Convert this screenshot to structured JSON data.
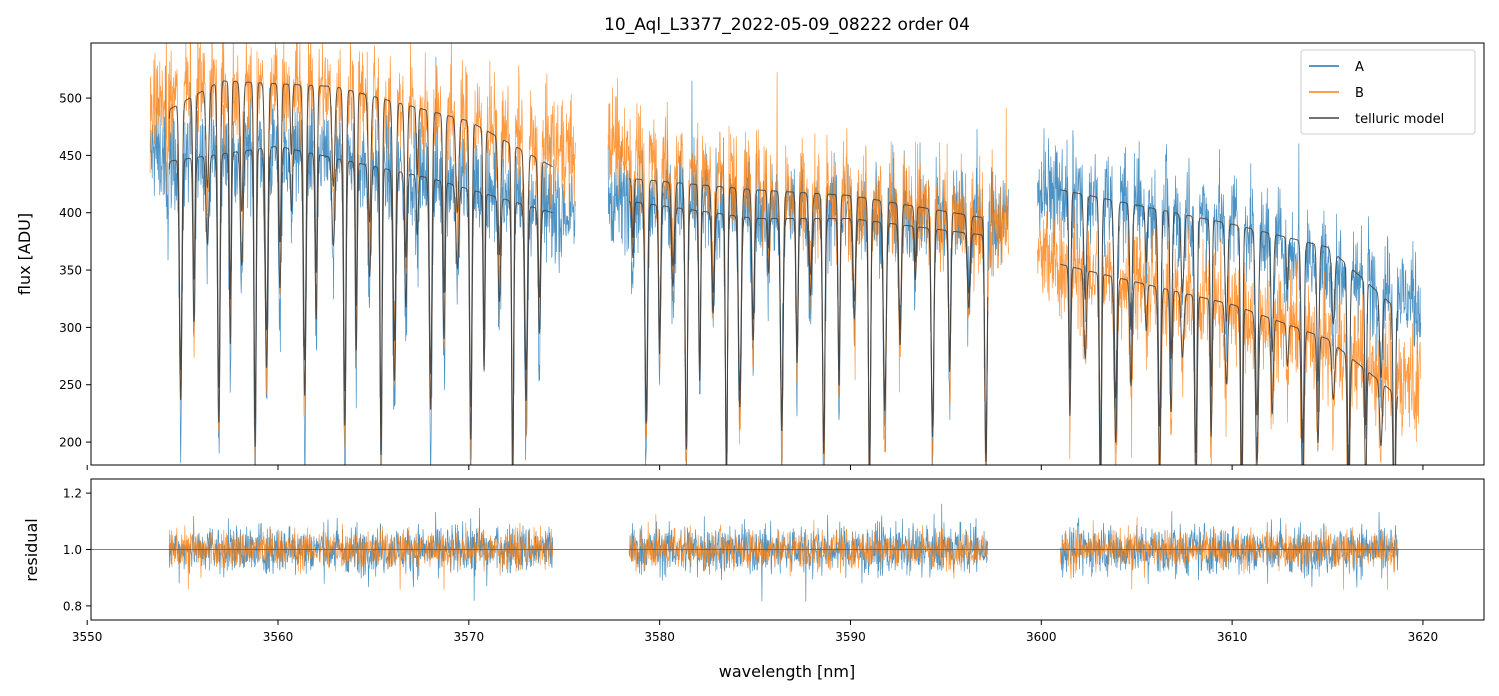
{
  "chart_data": [
    {
      "type": "line",
      "panel": "top",
      "title": "10_Aql_L3377_2022-05-09_08222  order 04",
      "xlabel": "",
      "ylabel": "flux [ADU]",
      "xlim": [
        3550.2,
        3623.2
      ],
      "ylim": [
        180,
        548
      ],
      "xticks": [
        3550,
        3560,
        3570,
        3580,
        3590,
        3600,
        3610,
        3620
      ],
      "xtick_labels": [
        "",
        "",
        "",
        "",
        "",
        "",
        "",
        ""
      ],
      "yticks": [
        200,
        250,
        300,
        350,
        400,
        450,
        500
      ],
      "ytick_labels": [
        "200",
        "250",
        "300",
        "350",
        "400",
        "450",
        "500"
      ],
      "segments": [
        [
          3553.3,
          3575.6
        ],
        [
          3577.3,
          3598.3
        ],
        [
          3599.8,
          3619.9
        ]
      ],
      "series": [
        {
          "name": "A",
          "color": "#1f77b4",
          "continuum": [
            [
              3553.3,
              450
            ],
            [
              3560,
              455
            ],
            [
              3570,
              425
            ],
            [
              3575.6,
              395
            ],
            [
              3577.3,
              415
            ],
            [
              3585,
              405
            ],
            [
              3598.3,
              395
            ],
            [
              3599.8,
              420
            ],
            [
              3610,
              395
            ],
            [
              3619.9,
              320
            ]
          ],
          "noise": 70
        },
        {
          "name": "B",
          "color": "#ff7f0e",
          "continuum": [
            [
              3553.3,
              490
            ],
            [
              3556,
              515
            ],
            [
              3562,
              510
            ],
            [
              3570,
              480
            ],
            [
              3575.6,
              450
            ],
            [
              3577.3,
              460
            ],
            [
              3585,
              425
            ],
            [
              3598.3,
              390
            ],
            [
              3599.8,
              360
            ],
            [
              3610,
              320
            ],
            [
              3619.9,
              250
            ]
          ],
          "noise": 75
        },
        {
          "name": "telluric model",
          "color": "#444444",
          "models": [
            {
              "range": [
                3554.3,
                3574.4
              ],
              "continuum": [
                [
                  3554.3,
                  445
                ],
                [
                  3560,
                  458
                ],
                [
                  3568,
                  430
                ],
                [
                  3574.4,
                  400
                ]
              ]
            },
            {
              "range": [
                3554.3,
                3574.4
              ],
              "continuum": [
                [
                  3554.3,
                  490
                ],
                [
                  3557,
                  515
                ],
                [
                  3563,
                  510
                ],
                [
                  3570,
                  480
                ],
                [
                  3574.4,
                  440
                ]
              ]
            },
            {
              "range": [
                3578.4,
                3597.2
              ],
              "continuum": [
                [
                  3578.4,
                  410
                ],
                [
                  3585,
                  395
                ],
                [
                  3590,
                  395
                ],
                [
                  3597.2,
                  380
                ]
              ]
            },
            {
              "range": [
                3578.4,
                3597.2
              ],
              "continuum": [
                [
                  3578.4,
                  430
                ],
                [
                  3585,
                  420
                ],
                [
                  3590,
                  415
                ],
                [
                  3597.2,
                  395
                ]
              ]
            },
            {
              "range": [
                3601.0,
                3618.7
              ],
              "continuum": [
                [
                  3601.0,
                  420
                ],
                [
                  3610,
                  390
                ],
                [
                  3615,
                  370
                ],
                [
                  3618.7,
                  315
                ]
              ]
            },
            {
              "range": [
                3601.0,
                3618.7
              ],
              "continuum": [
                [
                  3601.0,
                  355
                ],
                [
                  3610,
                  320
                ],
                [
                  3615,
                  290
                ],
                [
                  3618.7,
                  240
                ]
              ]
            }
          ]
        }
      ],
      "absorption_lines": [
        3554.2,
        3554.9,
        3555.6,
        3556.3,
        3556.9,
        3557.5,
        3558.1,
        3558.8,
        3559.4,
        3560.1,
        3560.7,
        3561.4,
        3562.0,
        3562.9,
        3563.5,
        3564.1,
        3564.8,
        3565.4,
        3566.1,
        3566.7,
        3567.3,
        3568.0,
        3568.7,
        3569.4,
        3570.1,
        3570.8,
        3571.6,
        3572.3,
        3573.0,
        3573.7,
        3578.6,
        3579.3,
        3580.0,
        3580.7,
        3581.4,
        3582.1,
        3582.8,
        3583.5,
        3584.2,
        3584.9,
        3585.7,
        3586.4,
        3587.2,
        3587.9,
        3588.6,
        3589.4,
        3590.2,
        3591.0,
        3591.8,
        3592.6,
        3593.4,
        3594.3,
        3595.2,
        3596.2,
        3597.1,
        3601.5,
        3602.3,
        3603.1,
        3603.9,
        3604.7,
        3605.5,
        3606.2,
        3606.8,
        3607.4,
        3608.1,
        3608.9,
        3609.7,
        3610.5,
        3611.3,
        3612.1,
        3612.9,
        3613.7,
        3614.5,
        3615.3,
        3616.1,
        3617.0,
        3617.8,
        3618.5
      ],
      "legend": {
        "position": "top-right",
        "entries": [
          "A",
          "B",
          "telluric model"
        ]
      }
    },
    {
      "type": "line",
      "panel": "bottom",
      "title": "",
      "xlabel": "wavelength [nm]",
      "ylabel": "residual",
      "xlim": [
        3550.2,
        3623.2
      ],
      "ylim": [
        0.75,
        1.25
      ],
      "xticks": [
        3550,
        3560,
        3570,
        3580,
        3590,
        3600,
        3610,
        3620
      ],
      "xtick_labels": [
        "3550",
        "3560",
        "3570",
        "3580",
        "3590",
        "3600",
        "3610",
        "3620"
      ],
      "yticks": [
        0.8,
        1.0,
        1.2
      ],
      "ytick_labels": [
        "0.8",
        "1.0",
        "1.2"
      ],
      "reference_line": 1.0,
      "segments": [
        [
          3554.3,
          3574.4
        ],
        [
          3578.4,
          3597.2
        ],
        [
          3601.0,
          3618.7
        ]
      ],
      "series": [
        {
          "name": "A",
          "color": "#1f77b4",
          "center": 1.0,
          "noise": 0.09
        },
        {
          "name": "B",
          "color": "#ff7f0e",
          "center": 1.0,
          "noise": 0.07
        }
      ]
    }
  ]
}
